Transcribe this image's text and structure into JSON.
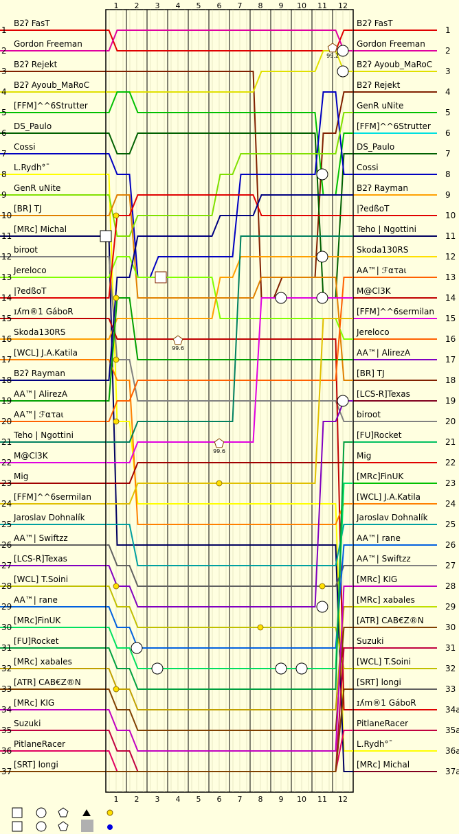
{
  "chart_data": {
    "type": "line",
    "title": "",
    "xlabel": "",
    "ylabel": "",
    "laps": [
      1,
      2,
      3,
      4,
      5,
      6,
      7,
      8,
      9,
      10,
      11,
      12
    ],
    "left_positions": [
      "1",
      "2",
      "3",
      "4",
      "5",
      "6",
      "7",
      "8",
      "9",
      "10",
      "11",
      "12",
      "13",
      "14",
      "15",
      "16",
      "17",
      "18",
      "19",
      "20",
      "21",
      "22",
      "23",
      "24",
      "25",
      "26",
      "27",
      "28",
      "29",
      "30",
      "31",
      "32",
      "33",
      "34",
      "35",
      "36",
      "37"
    ],
    "right_positions": [
      "1",
      "2",
      "3",
      "4",
      "5",
      "6",
      "7",
      "8",
      "9",
      "10",
      "11",
      "12",
      "13",
      "14",
      "15",
      "16",
      "17",
      "18",
      "19",
      "20",
      "21",
      "22",
      "23",
      "24",
      "25",
      "26",
      "27",
      "28",
      "29",
      "30",
      "31",
      "32",
      "33",
      "34a",
      "35a",
      "36a",
      "37a"
    ],
    "start_names": [
      "B2ʔ FasT",
      "Gordon Freeman",
      "B2ʔ Rejekt",
      "B2ʔ Ayoub_MaRoC",
      "[FFM]^^6Strutter",
      "DS_Paulo",
      "Cossi",
      "L.Rydh°¯",
      "GenR uNite",
      "[BR] TJ",
      "[MRc] Michal",
      "biroot",
      "Jereloco",
      "|ʔedßoT",
      "ɪʎm®1 GáboR",
      "Skoda130RS",
      "[WCL] J.A.Katila",
      "B2ʔ Rayman",
      "AA™| AlirezA",
      "AA™| ℱατaι",
      "Teho | Ngottini",
      "M@Cl3K",
      "Mig",
      "[FFM]^^6sermilan",
      "Jaroslav Dohnalík",
      "AA™| Swiftzz",
      "[LCS-R]Texas",
      "[WCL] T.Soini",
      "AA™| rane",
      "[MRc]FinUK",
      "[FU]Rocket",
      "[MRc] xabales",
      "[ATR] CAB€Z®N",
      "[MRc] KIG",
      "Suzuki",
      "PitlaneRacer",
      "[SRT] longi"
    ],
    "finish_names": [
      "B2ʔ FasT",
      "Gordon Freeman",
      "B2ʔ Ayoub_MaRoC",
      "B2ʔ Rejekt",
      "GenR uNite",
      "[FFM]^^6Strutter",
      "DS_Paulo",
      "Cossi",
      "B2ʔ Rayman",
      "|ʔedßoT",
      "Teho | Ngottini",
      "Skoda130RS",
      "AA™| ℱατaι",
      "M@Cl3K",
      "[FFM]^^6sermilan",
      "Jereloco",
      "AA™| AlirezA",
      "[BR] TJ",
      "[LCS-R]Texas",
      "biroot",
      "[FU]Rocket",
      "Mig",
      "[MRc]FinUK",
      "[WCL] J.A.Katila",
      "Jaroslav Dohnalík",
      "AA™| rane",
      "AA™| Swiftzz",
      "[MRc] KIG",
      "[MRc] xabales",
      "[ATR] CAB€Z®N",
      "Suzuki",
      "[WCL] T.Soini",
      "[SRT] longi",
      "ɪʎm®1 GáboR",
      "PitlaneRacer",
      "L.Rydh°¯",
      "[MRc] Michal"
    ],
    "colors": [
      "#e00000",
      "#e000a0",
      "#802000",
      "#e0e000",
      "#00c000",
      "#006000",
      "#0000c0",
      "#ffff00",
      "#80e000",
      "#e08000",
      "#000060",
      "#808080",
      "#80ff00",
      "#e00000",
      "#c00000",
      "#ffa000",
      "#ff8000",
      "#000080",
      "#00a000",
      "#ff6000",
      "#008060",
      "#e000e0",
      "#a00000",
      "#e0c000",
      "#00a0a0",
      "#606060",
      "#8000c0",
      "#c0c000",
      "#0060e0",
      "#00e060",
      "#00a040",
      "#c0a000",
      "#804000",
      "#c000c0",
      "#c00040",
      "#e00060",
      "#804000"
    ],
    "finish_colors": [
      "#e00000",
      "#e000a0",
      "#e0e000",
      "#802000",
      "#00c000",
      "#00e0e0",
      "#006000",
      "#0000c0",
      "#ffa000",
      "#e00000",
      "#000060",
      "#ffe000",
      "#ff6000",
      "#c00000",
      "#e000e0",
      "#ff6000",
      "#8000c0",
      "#802000",
      "#800020",
      "#808080",
      "#00c060",
      "#e00000",
      "#00c000",
      "#ff8000",
      "#00a0a0",
      "#0060e0",
      "#808080",
      "#c000c0",
      "#c0e000",
      "#804000",
      "#c00040",
      "#c0c000",
      "#606060",
      "#e00000",
      "#c00040",
      "#ffff00",
      "#800020"
    ],
    "series": [
      {
        "name": "B2ʔ FasT",
        "values": [
          1,
          2,
          2,
          2,
          2,
          2,
          2,
          2,
          2,
          2,
          2,
          2,
          1
        ]
      },
      {
        "name": "Gordon Freeman",
        "values": [
          2,
          1,
          1,
          1,
          1,
          1,
          1,
          1,
          1,
          1,
          1,
          1,
          2
        ]
      },
      {
        "name": "B2ʔ Rejekt",
        "values": [
          3,
          3,
          3,
          3,
          3,
          3,
          3,
          3,
          14,
          13,
          13,
          6,
          4
        ]
      },
      {
        "name": "B2ʔ Ayoub_MaRoC",
        "values": [
          4,
          4,
          4,
          4,
          4,
          4,
          4,
          4,
          3,
          3,
          3,
          2,
          3
        ]
      },
      {
        "name": "[FFM]^^6Strutter",
        "values": [
          5,
          4,
          5,
          5,
          5,
          5,
          5,
          5,
          5,
          5,
          5,
          9,
          6
        ]
      },
      {
        "name": "DS_Paulo",
        "values": [
          6,
          7,
          6,
          6,
          6,
          6,
          6,
          6,
          6,
          6,
          6,
          14,
          7
        ]
      },
      {
        "name": "Cossi",
        "values": [
          7,
          8,
          13,
          12,
          12,
          12,
          12,
          8,
          8,
          8,
          8,
          4,
          8
        ]
      },
      {
        "name": "L.Rydh°¯",
        "values": [
          8,
          20,
          24,
          24,
          24,
          24,
          24,
          24,
          24,
          24,
          24,
          24,
          36
        ]
      },
      {
        "name": "GenR uNite",
        "values": [
          9,
          11,
          10,
          10,
          10,
          10,
          8,
          7,
          7,
          7,
          7,
          7,
          5
        ]
      },
      {
        "name": "[BR] TJ",
        "values": [
          10,
          9,
          14,
          14,
          14,
          14,
          14,
          14,
          13,
          13,
          13,
          13,
          18
        ]
      },
      {
        "name": "[MRc] Michal",
        "values": [
          11,
          26,
          26,
          26,
          26,
          26,
          26,
          26,
          26,
          26,
          26,
          26,
          37
        ]
      },
      {
        "name": "biroot",
        "values": [
          12,
          17,
          19,
          19,
          19,
          19,
          19,
          19,
          19,
          19,
          19,
          19,
          20
        ]
      },
      {
        "name": "Jereloco",
        "values": [
          13,
          12,
          13,
          13,
          13,
          13,
          15,
          15,
          15,
          15,
          15,
          15,
          16
        ]
      },
      {
        "name": "|ʔedßoT",
        "values": [
          14,
          10,
          9,
          9,
          9,
          9,
          9,
          9,
          10,
          10,
          10,
          10,
          10
        ]
      },
      {
        "name": "ɪʎm®1 GáboR",
        "values": [
          15,
          16,
          16,
          16,
          16,
          16,
          16,
          16,
          16,
          16,
          16,
          16,
          34
        ]
      },
      {
        "name": "Skoda130RS",
        "values": [
          16,
          15,
          15,
          15,
          15,
          15,
          13,
          12,
          12,
          12,
          12,
          12,
          12
        ]
      },
      {
        "name": "[WCL] J.A.Katila",
        "values": [
          17,
          18,
          25,
          25,
          25,
          25,
          25,
          25,
          25,
          25,
          25,
          25,
          24
        ]
      },
      {
        "name": "B2ʔ Rayman",
        "values": [
          18,
          13,
          11,
          11,
          11,
          11,
          10,
          10,
          9,
          9,
          9,
          9,
          9
        ]
      },
      {
        "name": "AA™| AlirezA",
        "values": [
          19,
          14,
          17,
          17,
          17,
          17,
          17,
          17,
          17,
          17,
          17,
          17,
          17
        ]
      },
      {
        "name": "AA™| ℱατaι",
        "values": [
          20,
          19,
          18,
          18,
          18,
          18,
          18,
          18,
          18,
          18,
          18,
          18,
          13
        ]
      },
      {
        "name": "Teho | Ngottini",
        "values": [
          21,
          21,
          20,
          20,
          20,
          20,
          20,
          11,
          11,
          11,
          11,
          11,
          11
        ]
      },
      {
        "name": "M@Cl3K",
        "values": [
          22,
          22,
          21,
          21,
          21,
          21,
          21,
          21,
          14,
          14,
          14,
          14,
          14
        ]
      },
      {
        "name": "Mig",
        "values": [
          23,
          23,
          22,
          22,
          22,
          22,
          22,
          22,
          22,
          22,
          22,
          22,
          22
        ]
      },
      {
        "name": "[FFM]^^6sermilan",
        "values": [
          24,
          24,
          23,
          23,
          23,
          23,
          23,
          23,
          23,
          23,
          23,
          15,
          15
        ]
      },
      {
        "name": "Jaroslav Dohnalík",
        "values": [
          25,
          25,
          27,
          27,
          27,
          27,
          27,
          27,
          27,
          27,
          27,
          27,
          25
        ]
      },
      {
        "name": "AA™| Swiftzz",
        "values": [
          26,
          27,
          28,
          28,
          28,
          28,
          28,
          28,
          28,
          28,
          28,
          28,
          27
        ]
      },
      {
        "name": "[LCS-R]Texas",
        "values": [
          27,
          28,
          29,
          29,
          29,
          29,
          29,
          29,
          29,
          29,
          29,
          20,
          19
        ]
      },
      {
        "name": "[WCL] T.Soini",
        "values": [
          28,
          29,
          30,
          30,
          30,
          30,
          30,
          30,
          30,
          30,
          30,
          30,
          32
        ]
      },
      {
        "name": "AA™| rane",
        "values": [
          29,
          30,
          31,
          31,
          31,
          31,
          31,
          31,
          31,
          31,
          31,
          31,
          26
        ]
      },
      {
        "name": "[MRc]FinUK",
        "values": [
          30,
          31,
          32,
          32,
          32,
          32,
          32,
          32,
          32,
          32,
          32,
          32,
          23
        ]
      },
      {
        "name": "[FU]Rocket",
        "values": [
          31,
          32,
          33,
          33,
          33,
          33,
          33,
          33,
          33,
          33,
          33,
          33,
          21
        ]
      },
      {
        "name": "[MRc] xabales",
        "values": [
          32,
          33,
          34,
          34,
          34,
          34,
          34,
          34,
          34,
          34,
          34,
          34,
          29
        ]
      },
      {
        "name": "[ATR] CAB€Z®N",
        "values": [
          33,
          34,
          35,
          35,
          35,
          35,
          35,
          35,
          35,
          35,
          35,
          35,
          30
        ]
      },
      {
        "name": "[MRc] KIG",
        "values": [
          34,
          35,
          36,
          36,
          36,
          36,
          36,
          36,
          36,
          36,
          36,
          36,
          28
        ]
      },
      {
        "name": "Suzuki",
        "values": [
          35,
          36,
          37,
          37,
          37,
          37,
          37,
          37,
          37,
          37,
          37,
          37,
          31
        ]
      },
      {
        "name": "PitlaneRacer",
        "values": [
          36,
          37,
          37,
          37,
          37,
          37,
          37,
          37,
          37,
          37,
          37,
          37,
          35
        ]
      },
      {
        "name": "[SRT] longi",
        "values": [
          37,
          37,
          37,
          37,
          37,
          37,
          37,
          37,
          37,
          37,
          37,
          37,
          33
        ]
      }
    ],
    "annotations": [
      "99.6",
      "99.6",
      "99.2"
    ],
    "legend_symbols": [
      "square",
      "circle",
      "pentagon",
      "triangle",
      "dot-yellow",
      "square",
      "circle",
      "pentagon",
      "grey-square",
      "dot-blue"
    ]
  }
}
